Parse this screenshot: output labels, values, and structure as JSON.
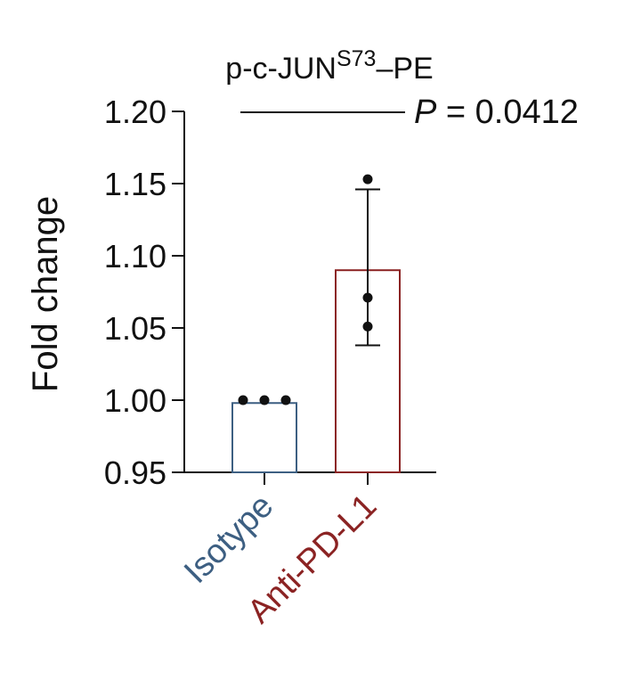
{
  "chart_data": {
    "type": "bar",
    "title": "p-c-JUN",
    "title_superscript": "S73",
    "title_suffix": "–PE",
    "ylabel": "Fold change",
    "xlabel": "",
    "ylim": [
      0.95,
      1.2
    ],
    "yticks": [
      "0.95",
      "1.00",
      "1.05",
      "1.10",
      "1.15",
      "1.20"
    ],
    "categories": [
      "Isotype",
      "Anti-PD-L1"
    ],
    "category_colors": [
      "#3d5f82",
      "#8b2323"
    ],
    "values": [
      0.998,
      1.09
    ],
    "error_low": [
      null,
      1.038
    ],
    "error_high": [
      null,
      1.146
    ],
    "points": [
      [
        1.0,
        1.0,
        1.0
      ],
      [
        1.153,
        1.071,
        1.051
      ]
    ],
    "significance": {
      "p_label": "P",
      "p_value_text": " = 0.0412",
      "y": 1.2
    },
    "grid": false,
    "legend": "none"
  }
}
